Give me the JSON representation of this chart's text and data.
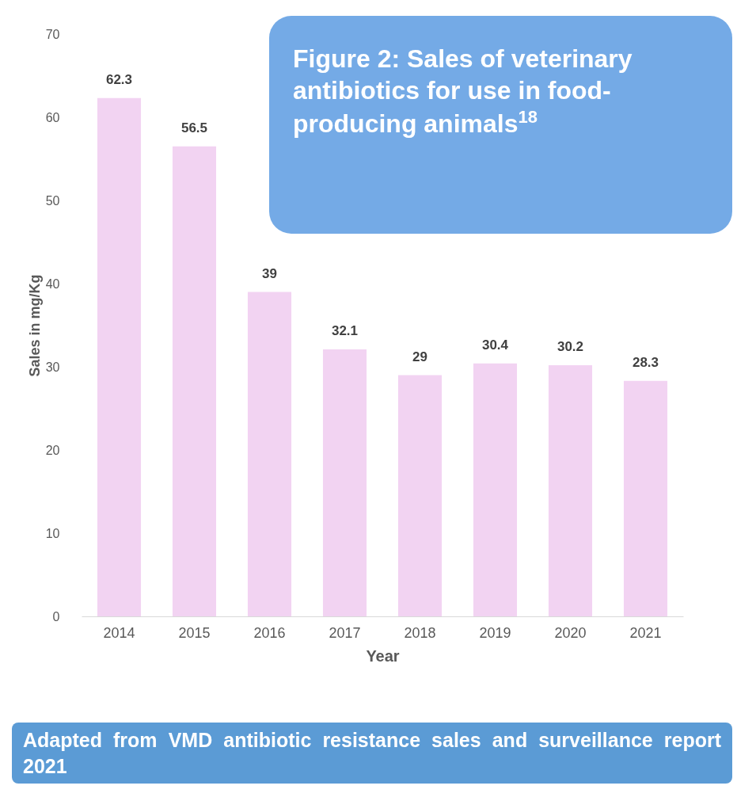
{
  "chart_data": {
    "type": "bar",
    "title": "Figure 2: Sales of veterinary antibiotics for use in food-producing animals$^{18}$",
    "xlabel": "Year",
    "ylabel": "Sales in mg/Kg",
    "categories": [
      "2014",
      "2015",
      "2016",
      "2017",
      "2018",
      "2019",
      "2020",
      "2021"
    ],
    "values": [
      62.3,
      56.5,
      39,
      32.1,
      29,
      30.4,
      30.2,
      28.3
    ],
    "color": "#f2d3f2",
    "ylim": [
      0,
      70
    ],
    "yticks": [
      0,
      10,
      20,
      30,
      40,
      50,
      60,
      70
    ],
    "grid": false,
    "data_labels": true,
    "annotations": [
      "Adapted from VMD antibiotic resistance sales and surveillance report 2021"
    ]
  }
}
